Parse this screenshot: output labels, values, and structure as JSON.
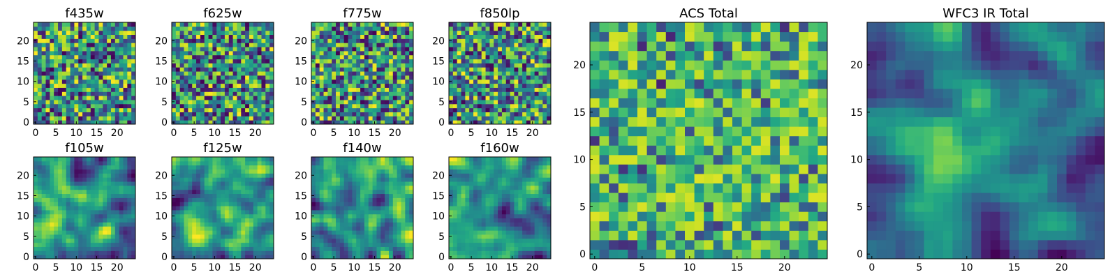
{
  "figure": {
    "background": "#ffffff"
  },
  "chart_data": [
    {
      "type": "heatmap",
      "title": "f435w",
      "xticks": [
        "0",
        "5",
        "10",
        "15",
        "20"
      ],
      "yticks": [
        "0",
        "5",
        "10",
        "15",
        "20"
      ],
      "xlim": [
        -0.5,
        24.5
      ],
      "ylim": [
        -0.5,
        24.5
      ],
      "grid": false,
      "colormap": "viridis",
      "seed": 11,
      "smooth": 0,
      "pattern": "noise"
    },
    {
      "type": "heatmap",
      "title": "f625w",
      "xticks": [
        "0",
        "5",
        "10",
        "15",
        "20"
      ],
      "yticks": [
        "0",
        "5",
        "10",
        "15",
        "20"
      ],
      "xlim": [
        -0.5,
        24.5
      ],
      "ylim": [
        -0.5,
        24.5
      ],
      "grid": false,
      "colormap": "viridis",
      "seed": 23,
      "smooth": 0,
      "pattern": "noise"
    },
    {
      "type": "heatmap",
      "title": "f775w",
      "xticks": [
        "0",
        "5",
        "10",
        "15",
        "20"
      ],
      "yticks": [
        "0",
        "5",
        "10",
        "15",
        "20"
      ],
      "xlim": [
        -0.5,
        24.5
      ],
      "ylim": [
        -0.5,
        24.5
      ],
      "grid": false,
      "colormap": "viridis",
      "seed": 37,
      "smooth": 0,
      "pattern": "noise"
    },
    {
      "type": "heatmap",
      "title": "f850lp",
      "xticks": [
        "0",
        "5",
        "10",
        "15",
        "20"
      ],
      "yticks": [
        "0",
        "5",
        "10",
        "15",
        "20"
      ],
      "xlim": [
        -0.5,
        24.5
      ],
      "ylim": [
        -0.5,
        24.5
      ],
      "grid": false,
      "colormap": "viridis",
      "seed": 41,
      "smooth": 0,
      "pattern": "noise"
    },
    {
      "type": "heatmap",
      "title": "f105w",
      "xticks": [
        "0",
        "5",
        "10",
        "15",
        "20"
      ],
      "yticks": [
        "0",
        "5",
        "10",
        "15",
        "20"
      ],
      "xlim": [
        -0.5,
        24.5
      ],
      "ylim": [
        -0.5,
        24.5
      ],
      "grid": false,
      "colormap": "viridis",
      "seed": 53,
      "smooth": 1,
      "pattern": "smooth"
    },
    {
      "type": "heatmap",
      "title": "f125w",
      "xticks": [
        "0",
        "5",
        "10",
        "15",
        "20"
      ],
      "yticks": [
        "0",
        "5",
        "10",
        "15",
        "20"
      ],
      "xlim": [
        -0.5,
        24.5
      ],
      "ylim": [
        -0.5,
        24.5
      ],
      "grid": false,
      "colormap": "viridis",
      "seed": 67,
      "smooth": 1,
      "pattern": "smooth"
    },
    {
      "type": "heatmap",
      "title": "f140w",
      "xticks": [
        "0",
        "5",
        "10",
        "15",
        "20"
      ],
      "yticks": [
        "0",
        "5",
        "10",
        "15",
        "20"
      ],
      "xlim": [
        -0.5,
        24.5
      ],
      "ylim": [
        -0.5,
        24.5
      ],
      "grid": false,
      "colormap": "viridis",
      "seed": 79,
      "smooth": 1,
      "pattern": "smooth"
    },
    {
      "type": "heatmap",
      "title": "f160w",
      "xticks": [
        "0",
        "5",
        "10",
        "15",
        "20"
      ],
      "yticks": [
        "0",
        "5",
        "10",
        "15",
        "20"
      ],
      "xlim": [
        -0.5,
        24.5
      ],
      "ylim": [
        -0.5,
        24.5
      ],
      "grid": false,
      "colormap": "viridis",
      "seed": 83,
      "smooth": 1,
      "pattern": "smooth"
    },
    {
      "type": "heatmap",
      "title": "ACS Total",
      "xticks": [
        "0",
        "5",
        "10",
        "15",
        "20"
      ],
      "yticks": [
        "0",
        "5",
        "10",
        "15",
        "20"
      ],
      "xlim": [
        -0.5,
        24.5
      ],
      "ylim": [
        -0.5,
        24.5
      ],
      "grid": false,
      "colormap": "viridis",
      "seed": 97,
      "smooth": 0,
      "pattern": "bright"
    },
    {
      "type": "heatmap",
      "title": "WFC3 IR Total",
      "xticks": [
        "0",
        "5",
        "10",
        "15",
        "20"
      ],
      "yticks": [
        "0",
        "5",
        "10",
        "15",
        "20"
      ],
      "xlim": [
        -0.5,
        24.5
      ],
      "ylim": [
        -0.5,
        24.5
      ],
      "grid": false,
      "colormap": "viridis",
      "seed": 101,
      "smooth": 1,
      "pattern": "blob"
    }
  ]
}
